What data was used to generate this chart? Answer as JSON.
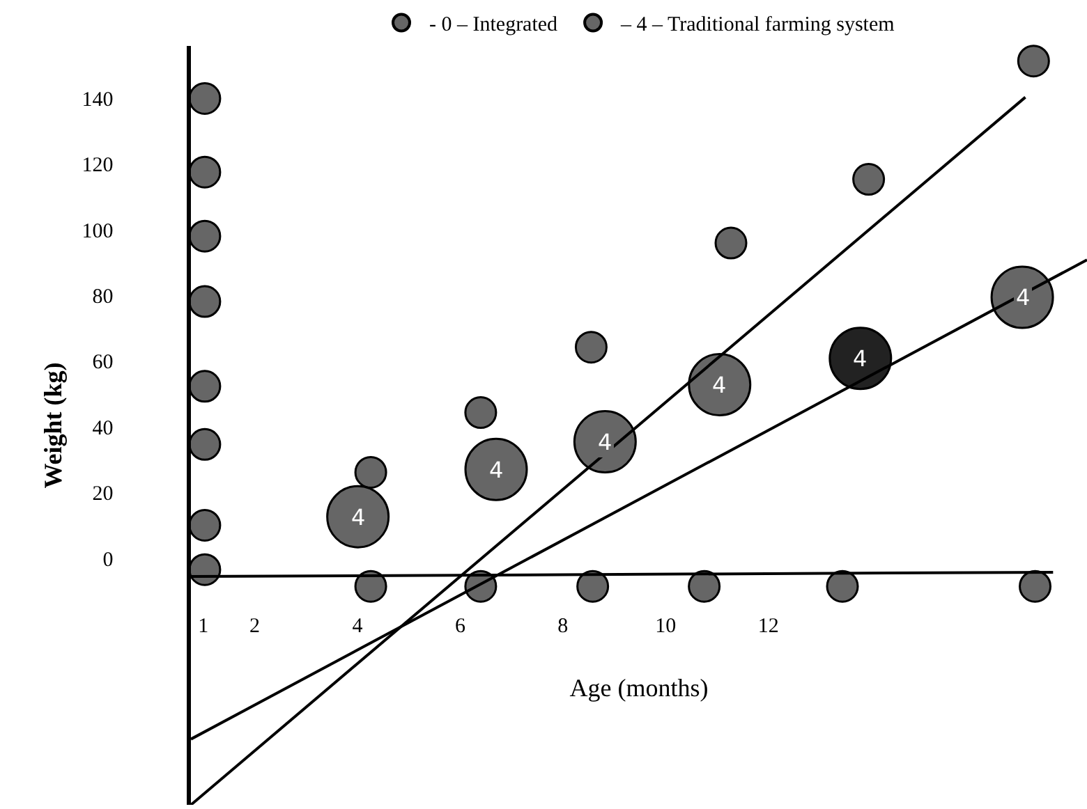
{
  "chart_data": {
    "type": "scatter",
    "xlabel": "Age (months)",
    "ylabel": "Weight (kg)",
    "xlim": [
      0.76,
      18.2
    ],
    "xticks": [
      1,
      2,
      4,
      6,
      8,
      10,
      12
    ],
    "annotations": [
      {
        "text": "4",
        "x": 4.01,
        "y": 12.7
      },
      {
        "text": "4",
        "x": 6.7,
        "y": 27.1
      },
      {
        "text": "4",
        "x": 8.82,
        "y": 35.5
      },
      {
        "text": "4",
        "x": 11.05,
        "y": 52.9
      },
      {
        "text": "4",
        "x": 13.79,
        "y": 60.9
      },
      {
        "text": "4",
        "x": 16.94,
        "y": 79.5
      }
    ],
    "ylim": [
      -75,
      156
    ],
    "yticks": [
      0,
      20,
      40,
      60,
      80,
      100,
      120,
      140
    ],
    "legend": "top",
    "marker": "circle",
    "series": [
      {
        "name": "- 0 – Integrated",
        "color": "#666666",
        "x": [
          1.03,
          1.03,
          1.03,
          1.03,
          1.03,
          1.03,
          1.03,
          1.03,
          4.26,
          6.4,
          8.58,
          10.75,
          13.44,
          17.19,
          4.26,
          6.4,
          8.55,
          11.27,
          13.95,
          17.16
        ],
        "values": [
          140,
          117.6,
          98.1,
          78.2,
          52.4,
          34.7,
          10.1,
          -3.4,
          -8.5,
          -8.5,
          -8.5,
          -8.5,
          -8.5,
          -8.5,
          26.2,
          44.4,
          64.3,
          96,
          115.4,
          151.4
        ]
      },
      {
        "name": "– 4 – Traditional farming system",
        "colors": [
          "#666666",
          "#666666",
          "#666666",
          "#666666",
          "#222222",
          "#666666"
        ],
        "x": [
          4.01,
          6.7,
          8.82,
          11.05,
          13.79,
          16.94
        ],
        "values": [
          12.7,
          27.1,
          35.5,
          52.9,
          60.9,
          79.5
        ]
      },
      {
        "type": "line",
        "marker": "none",
        "color": "#000000",
        "x": [
          0.76,
          17.0
        ],
        "values": [
          -75,
          140.4
        ]
      },
      {
        "type": "line",
        "marker": "none",
        "color": "#000000",
        "x": [
          0.76,
          18.2
        ],
        "values": [
          -55,
          90.9
        ]
      },
      {
        "type": "line",
        "marker": "none",
        "color": "#000000",
        "x": [
          0.76,
          17.54
        ],
        "values": [
          -5.5,
          -4.2
        ]
      }
    ]
  }
}
